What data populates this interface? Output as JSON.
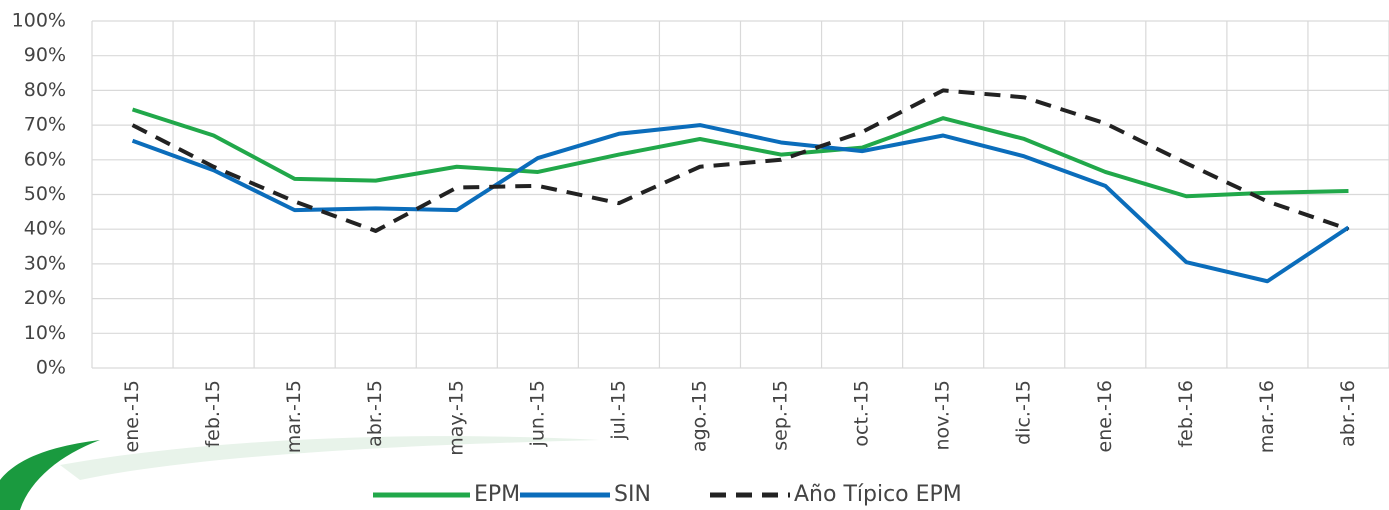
{
  "chart_data": {
    "type": "line",
    "categories": [
      "ene.-15",
      "feb.-15",
      "mar.-15",
      "abr.-15",
      "may.-15",
      "jun.-15",
      "jul.-15",
      "ago.-15",
      "sep.-15",
      "oct.-15",
      "nov.-15",
      "dic.-15",
      "ene.-16",
      "feb.-16",
      "mar.-16",
      "abr.-16"
    ],
    "series": [
      {
        "name": "EPM",
        "color": "#21a84a",
        "dash": false,
        "values": [
          74.5,
          67,
          54.5,
          54,
          58,
          56.5,
          61.5,
          66,
          61.5,
          63.5,
          72,
          66,
          56.5,
          49.5,
          50.5,
          51
        ]
      },
      {
        "name": "SIN",
        "color": "#0b6dbb",
        "dash": false,
        "values": [
          65.5,
          57,
          45.5,
          46,
          45.5,
          60.5,
          67.5,
          70,
          65,
          62.5,
          67,
          61,
          52.5,
          30.5,
          25,
          40.5
        ]
      },
      {
        "name": "Año Típico EPM",
        "color": "#222222",
        "dash": true,
        "values": [
          70,
          58,
          48,
          39.5,
          52,
          52.5,
          47.5,
          58,
          60,
          68,
          80,
          78,
          70.5,
          59,
          48,
          40
        ]
      }
    ],
    "ylim": [
      0,
      100
    ],
    "yticks": [
      {
        "value": 0,
        "label": "0%"
      },
      {
        "value": 10,
        "label": "10%"
      },
      {
        "value": 20,
        "label": "20%"
      },
      {
        "value": 30,
        "label": "30%"
      },
      {
        "value": 40,
        "label": "40%"
      },
      {
        "value": 50,
        "label": "50%"
      },
      {
        "value": 60,
        "label": "60%"
      },
      {
        "value": 70,
        "label": "70%"
      },
      {
        "value": 80,
        "label": "80%"
      },
      {
        "value": 90,
        "label": "90%"
      },
      {
        "value": 100,
        "label": "100%"
      }
    ],
    "grid": true,
    "legend": "bottom"
  }
}
